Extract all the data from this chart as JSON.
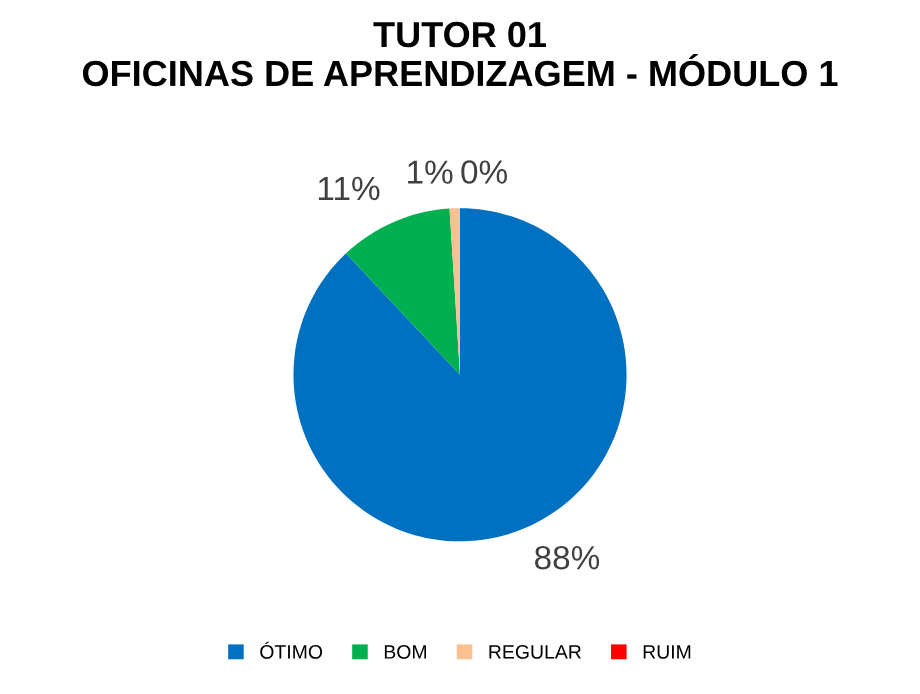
{
  "chart_data": {
    "type": "pie",
    "title": "TUTOR 01\nOFICINAS DE APRENDIZAGEM - MÓDULO 1",
    "categories": [
      "ÓTIMO",
      "BOM",
      "REGULAR",
      "RUIM"
    ],
    "values": [
      88,
      11,
      1,
      0
    ],
    "value_labels": [
      "88%",
      "11%",
      "1%",
      "0%"
    ],
    "colors": [
      "#0070c0",
      "#00b050",
      "#fac090",
      "#ff0000"
    ],
    "legend": "bottom"
  }
}
